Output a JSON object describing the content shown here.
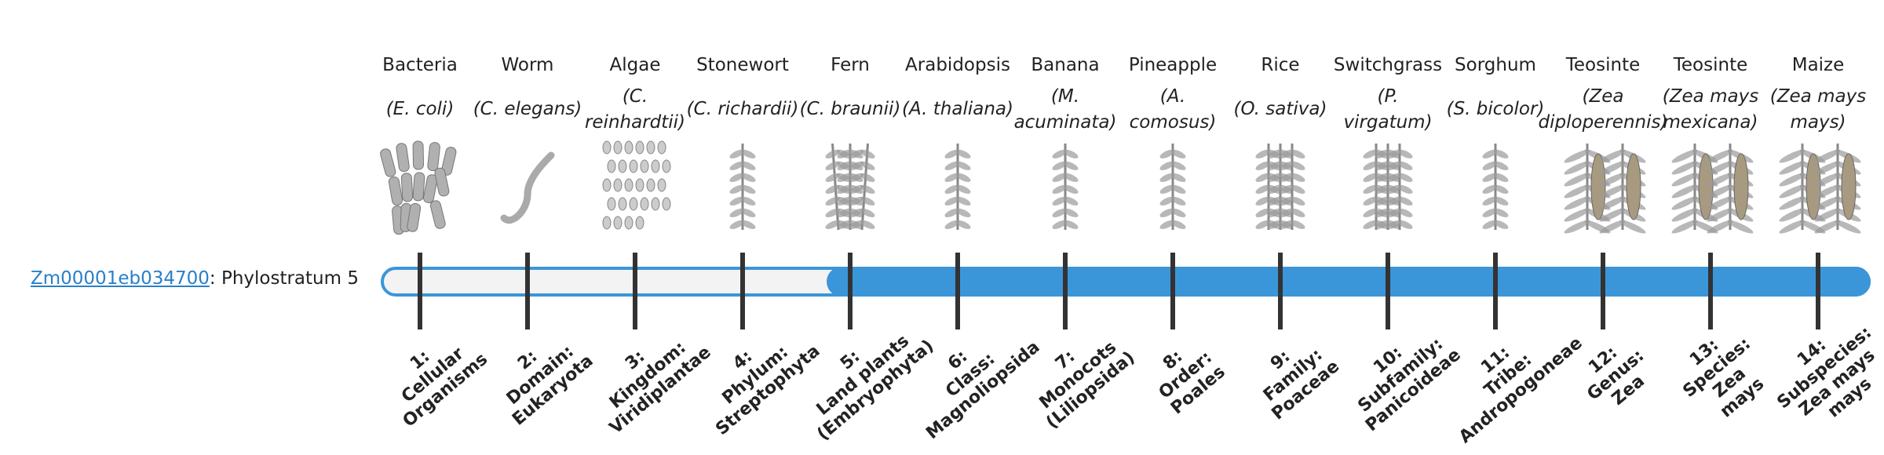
{
  "gene": "Zm00001eb034700",
  "gene_label": ": Phylostratum 5",
  "current_stratum": 5,
  "organisms": [
    {
      "name": "Bacteria",
      "latin": [
        "(E. coli)"
      ]
    },
    {
      "name": "Worm",
      "latin": [
        "(C. elegans)"
      ]
    },
    {
      "name": "Algae",
      "latin": [
        "(C.",
        "reinhardtii)"
      ]
    },
    {
      "name": "Stonewort",
      "latin": [
        "(C. richardii)"
      ]
    },
    {
      "name": "Fern",
      "latin": [
        "(C. braunii)"
      ]
    },
    {
      "name": "Arabidopsis",
      "latin": [
        "(A. thaliana)"
      ]
    },
    {
      "name": "Banana",
      "latin": [
        "(M.",
        "acuminata)"
      ]
    },
    {
      "name": "Pineapple",
      "latin": [
        "(A.",
        "comosus)"
      ]
    },
    {
      "name": "Rice",
      "latin": [
        "(O. sativa)"
      ]
    },
    {
      "name": "Switchgrass",
      "latin": [
        "(P.",
        "virgatum)"
      ]
    },
    {
      "name": "Sorghum",
      "latin": [
        "(S. bicolor)"
      ]
    },
    {
      "name": "Teosinte",
      "latin": [
        "(Zea",
        "diploperennis)"
      ]
    },
    {
      "name": "Teosinte",
      "latin": [
        "(Zea mays",
        "mexicana)"
      ]
    },
    {
      "name": "Maize",
      "latin": [
        "(Zea mays",
        "mays)"
      ]
    }
  ],
  "strata": [
    [
      "1:",
      "Cellular",
      "Organisms"
    ],
    [
      "2:",
      "Domain:",
      "Eukaryota"
    ],
    [
      "3:",
      "Kingdom:",
      "Viridiplantae"
    ],
    [
      "4:",
      "Phylum:",
      "Streptophyta"
    ],
    [
      "5:",
      "Land plants",
      "(Embryophyta)"
    ],
    [
      "6:",
      "Class:",
      "Magnoliopsida"
    ],
    [
      "7:",
      "Monocots",
      "(Liliopsida)"
    ],
    [
      "8:",
      "Order:",
      "Poales"
    ],
    [
      "9:",
      "Family:",
      "Poaceae"
    ],
    [
      "10:",
      "Subfamily:",
      "Panicoideae"
    ],
    [
      "11:",
      "Tribe:",
      "Andropogoneae"
    ],
    [
      "12:",
      "Genus:",
      "Zea"
    ],
    [
      "13:",
      "Species:",
      "Zea",
      "mays"
    ],
    [
      "14:",
      "Subspecies:",
      "Zea mays",
      "mays"
    ]
  ]
}
